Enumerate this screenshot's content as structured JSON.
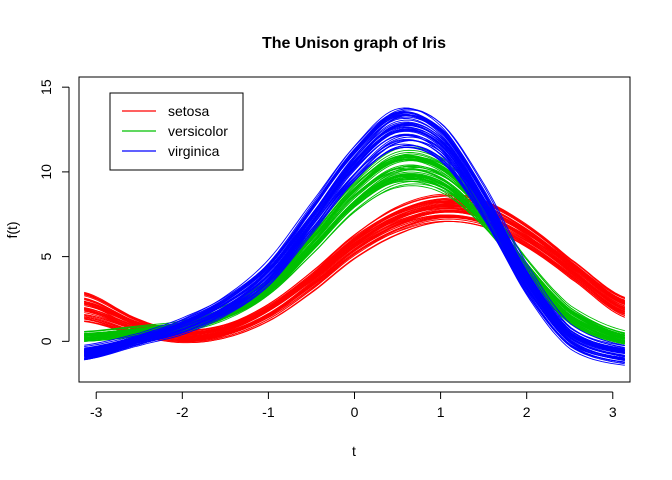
{
  "chart_data": {
    "type": "line",
    "title": "The Unison graph of Iris",
    "xlabel": "t",
    "ylabel": "f(t)",
    "xlim": [
      -3.2,
      3.2
    ],
    "ylim": [
      -2.4,
      15.6
    ],
    "xticks": [
      -3,
      -2,
      -1,
      0,
      1,
      2,
      3
    ],
    "xtick_labels": [
      "-3",
      "-2",
      "-1",
      "0",
      "1",
      "2",
      "3"
    ],
    "yticks": [
      0,
      5,
      10,
      15
    ],
    "ytick_labels": [
      "0",
      "5",
      "10",
      "15"
    ],
    "grid": false,
    "legend": {
      "position": "top-left",
      "entries": [
        "setosa",
        "versicolor",
        "virginica"
      ]
    },
    "series": [
      {
        "name": "setosa",
        "color": "#ff0000",
        "curves": 50,
        "x": [
          -3.14,
          -2.5,
          -2.0,
          -1.5,
          -1.0,
          -0.5,
          0.0,
          0.5,
          1.0,
          1.5,
          2.0,
          2.5,
          3.14
        ],
        "y": [
          2.0,
          0.8,
          0.3,
          0.6,
          1.7,
          3.5,
          5.6,
          7.1,
          7.8,
          7.5,
          6.2,
          4.3,
          2.0
        ],
        "y_spread": [
          0.9,
          0.5,
          0.4,
          0.4,
          0.5,
          0.6,
          0.7,
          0.8,
          0.8,
          0.8,
          0.7,
          0.6,
          0.6
        ]
      },
      {
        "name": "versicolor",
        "color": "#00c000",
        "curves": 50,
        "x": [
          -3.14,
          -2.5,
          -2.0,
          -1.5,
          -1.0,
          -0.5,
          0.0,
          0.5,
          1.0,
          1.5,
          2.0,
          2.5,
          3.14
        ],
        "y": [
          0.3,
          0.6,
          0.9,
          1.7,
          3.2,
          5.8,
          8.6,
          10.3,
          9.9,
          7.6,
          4.3,
          1.6,
          0.2
        ],
        "y_spread": [
          0.3,
          0.3,
          0.3,
          0.4,
          0.5,
          0.7,
          0.9,
          1.1,
          1.0,
          0.8,
          0.6,
          0.5,
          0.4
        ]
      },
      {
        "name": "virginica",
        "color": "#0000ff",
        "curves": 50,
        "x": [
          -3.14,
          -2.5,
          -2.0,
          -1.5,
          -1.0,
          -0.5,
          0.0,
          0.5,
          1.0,
          1.5,
          2.0,
          2.5,
          3.14
        ],
        "y": [
          -0.7,
          0.1,
          0.9,
          2.1,
          4.0,
          7.2,
          10.5,
          12.6,
          11.8,
          8.2,
          3.6,
          0.3,
          -0.8
        ],
        "y_spread": [
          0.4,
          0.3,
          0.4,
          0.5,
          0.7,
          0.9,
          1.1,
          1.3,
          1.2,
          1.0,
          0.8,
          0.6,
          0.5
        ]
      }
    ]
  }
}
